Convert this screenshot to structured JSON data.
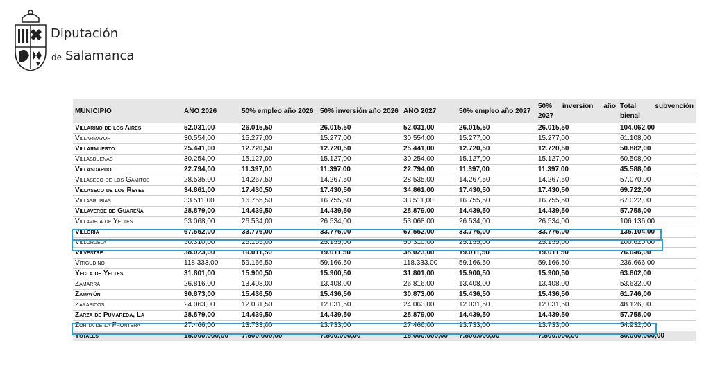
{
  "header": {
    "org_line1": "Diputación",
    "org_line2_prefix": "de",
    "org_line2": "Salamanca"
  },
  "table": {
    "header": [
      "MUNICIPIO",
      "AÑO 2026",
      "50% empleo año 2026",
      "50% inversión año 2026",
      "AÑO 2027",
      "50% empleo año 2027",
      "50% inversión año 2027",
      "Total subvención bienal"
    ],
    "rows": [
      [
        "Villarino de los Aires",
        "52.031,00",
        "26.015,50",
        "26.015,50",
        "52.031,00",
        "26.015,50",
        "26.015,50",
        "104.062,00"
      ],
      [
        "Villarmayor",
        "30.554,00",
        "15.277,00",
        "15.277,00",
        "30.554,00",
        "15.277,00",
        "15.277,00",
        "61.108,00"
      ],
      [
        "Villarmuerto",
        "25.441,00",
        "12.720,50",
        "12.720,50",
        "25.441,00",
        "12.720,50",
        "12.720,50",
        "50.882,00"
      ],
      [
        "Villasbuenas",
        "30.254,00",
        "15.127,00",
        "15.127,00",
        "30.254,00",
        "15.127,00",
        "15.127,00",
        "60.508,00"
      ],
      [
        "Villasdardo",
        "22.794,00",
        "11.397,00",
        "11.397,00",
        "22.794,00",
        "11.397,00",
        "11.397,00",
        "45.588,00"
      ],
      [
        "Villaseco de los Gamitos",
        "28.535,00",
        "14.267,50",
        "14.267,50",
        "28.535,00",
        "14.267,50",
        "14.267,50",
        "57.070,00"
      ],
      [
        "Villaseco de los Reyes",
        "34.861,00",
        "17.430,50",
        "17.430,50",
        "34.861,00",
        "17.430,50",
        "17.430,50",
        "69.722,00"
      ],
      [
        "Villasrubias",
        "33.511,00",
        "16.755,50",
        "16.755,50",
        "33.511,00",
        "16.755,50",
        "16.755,50",
        "67.022,00"
      ],
      [
        "Villaverde de Guareña",
        "28.879,00",
        "14.439,50",
        "14.439,50",
        "28.879,00",
        "14.439,50",
        "14.439,50",
        "57.758,00"
      ],
      [
        "Villavieja de Yeltes",
        "53.068,00",
        "26.534,00",
        "26.534,00",
        "53.068,00",
        "26.534,00",
        "26.534,00",
        "106.136,00"
      ],
      [
        "Villoria",
        "67.552,00",
        "33.776,00",
        "33.776,00",
        "67.552,00",
        "33.776,00",
        "33.776,00",
        "135.104,00"
      ],
      [
        "Villoruela",
        "50.310,00",
        "25.155,00",
        "25.155,00",
        "50.310,00",
        "25.155,00",
        "25.155,00",
        "100.620,00"
      ],
      [
        "Vilvestre",
        "38.023,00",
        "19.011,50",
        "19.011,50",
        "38.023,00",
        "19.011,50",
        "19.011,50",
        "76.046,00"
      ],
      [
        "Vitigudino",
        "118.333,00",
        "59.166,50",
        "59.166,50",
        "118.333,00",
        "59.166,50",
        "59.166,50",
        "236.666,00"
      ],
      [
        "Yecla de Yeltes",
        "31.801,00",
        "15.900,50",
        "15.900,50",
        "31.801,00",
        "15.900,50",
        "15.900,50",
        "63.602,00"
      ],
      [
        "Zamarra",
        "26.816,00",
        "13.408,00",
        "13.408,00",
        "26.816,00",
        "13.408,00",
        "13.408,00",
        "53.632,00"
      ],
      [
        "Zamayón",
        "30.873,00",
        "15.436,50",
        "15.436,50",
        "30.873,00",
        "15.436,50",
        "15.436,50",
        "61.746,00"
      ],
      [
        "Zarapicos",
        "24.063,00",
        "12.031,50",
        "12.031,50",
        "24.063,00",
        "12.031,50",
        "12.031,50",
        "48.126,00"
      ],
      [
        "Zarza de Pumareda, La",
        "28.879,00",
        "14.439,50",
        "14.439,50",
        "28.879,00",
        "14.439,50",
        "14.439,50",
        "57.758,00"
      ],
      [
        "Zorita de la Frontera",
        "27.466,00",
        "13.733,00",
        "13.733,00",
        "27.466,00",
        "13.733,00",
        "13.733,00",
        "54.932,00"
      ]
    ],
    "totals": [
      "Totales",
      "15.000.000,00",
      "7.500.000,00",
      "7.500.000,00",
      "15.000.000,00",
      "7.500.000,00",
      "7.500.000,00",
      "30.000.000,00"
    ]
  }
}
